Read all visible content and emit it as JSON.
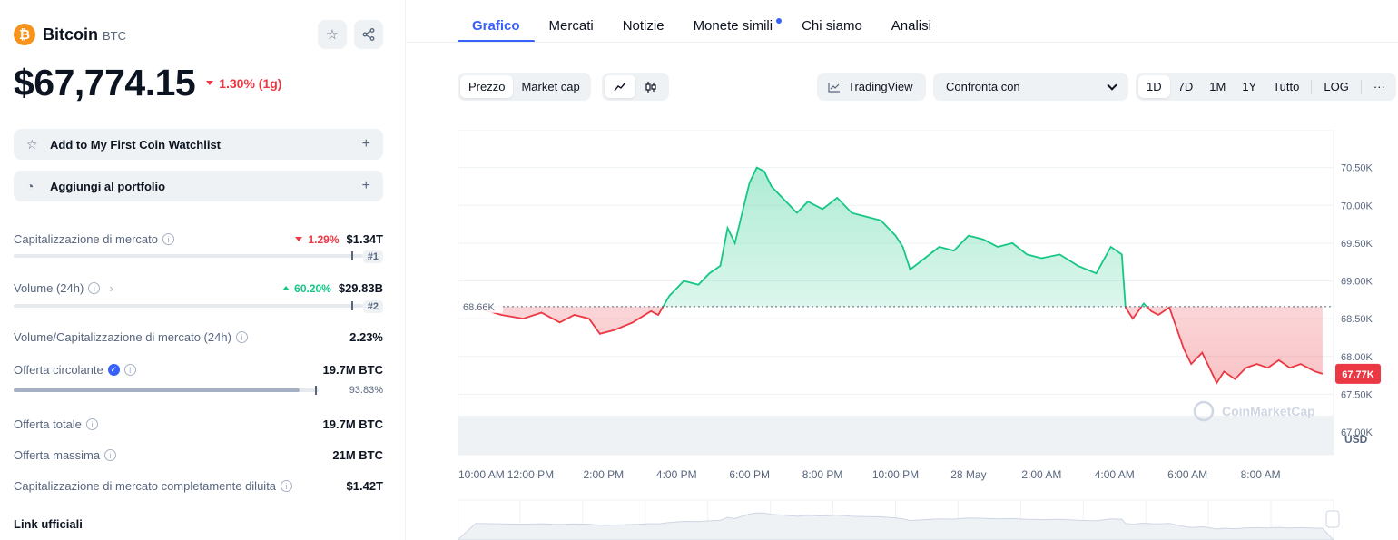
{
  "coin": {
    "logo_glyph": "₿",
    "name": "Bitcoin",
    "symbol": "BTC",
    "price": "$67,774.15",
    "change": "1.30% (1g)",
    "change_color": "#ea3943"
  },
  "actions": {
    "watchlist_label": "Add to My First Coin Watchlist",
    "portfolio_label": "Aggiungi al portfolio",
    "plus": "+"
  },
  "stats": {
    "market_cap": {
      "label": "Capitalizzazione di mercato",
      "change": "1.29%",
      "value": "$1.34T",
      "rank": "#1"
    },
    "volume": {
      "label": "Volume (24h)",
      "change": "60.20%",
      "value": "$29.83B",
      "rank": "#2"
    },
    "vol_mcap": {
      "label": "Volume/Capitalizzazione di mercato (24h)",
      "value": "2.23%"
    },
    "circulating": {
      "label": "Offerta circolante",
      "value": "19.7M BTC",
      "percent": "93.83%",
      "fill": 0.9383
    },
    "total": {
      "label": "Offerta totale",
      "value": "19.7M BTC"
    },
    "max": {
      "label": "Offerta massima",
      "value": "21M BTC"
    },
    "fdv": {
      "label": "Capitalizzazione di mercato completamente diluita",
      "value": "$1.42T"
    }
  },
  "links_title": "Link ufficiali",
  "tabs": [
    "Grafico",
    "Mercati",
    "Notizie",
    "Monete simili",
    "Chi siamo",
    "Analisi"
  ],
  "toolbar": {
    "price_label": "Prezzo",
    "mcap_label": "Market cap",
    "tradingview_label": "TradingView",
    "compare_label": "Confronta con",
    "ranges": [
      "1D",
      "7D",
      "1M",
      "1Y",
      "Tutto"
    ],
    "log_label": "LOG",
    "more_label": "···"
  },
  "chart_data": {
    "type": "line",
    "y_ticks": [
      "70.50K",
      "70.00K",
      "69.50K",
      "69.00K",
      "68.50K",
      "68.00K",
      "67.50K",
      "67.00K"
    ],
    "y_tick_values": [
      70500,
      70000,
      69500,
      69000,
      68500,
      68000,
      67500,
      67000
    ],
    "ylim": [
      66700,
      71000
    ],
    "currency_label": "USD",
    "baseline_label": "68.66K",
    "baseline": 68660,
    "current_label": "67.77K",
    "current": 67770,
    "x_labels": [
      "10:00 AM",
      "12:00 PM",
      "2:00 PM",
      "4:00 PM",
      "6:00 PM",
      "8:00 PM",
      "10:00 PM",
      "28 May",
      "2:00 AM",
      "4:00 AM",
      "6:00 AM",
      "8:00 AM"
    ],
    "x_label_pos": [
      0,
      2,
      4,
      6,
      8,
      10,
      12,
      14,
      16,
      18,
      20,
      22
    ],
    "x_range": [
      0,
      24
    ],
    "x": [
      0.5,
      1.2,
      1.8,
      2.3,
      2.8,
      3.2,
      3.6,
      3.9,
      4.3,
      4.8,
      5.3,
      5.5,
      5.8,
      6.2,
      6.6,
      6.9,
      7.2,
      7.4,
      7.6,
      7.8,
      8.0,
      8.2,
      8.4,
      8.6,
      8.8,
      9.0,
      9.3,
      9.6,
      10.0,
      10.4,
      10.8,
      11.2,
      11.6,
      12.0,
      12.2,
      12.4,
      12.8,
      13.2,
      13.6,
      14.0,
      14.4,
      14.8,
      15.2,
      15.6,
      16.0,
      16.5,
      17.0,
      17.5,
      17.9,
      18.2,
      18.3,
      18.5,
      18.8,
      19.0,
      19.2,
      19.5,
      19.9,
      20.1,
      20.4,
      20.8,
      21.0,
      21.3,
      21.6,
      21.9,
      22.2,
      22.5,
      22.8,
      23.1,
      23.5,
      23.7
    ],
    "values": [
      68650,
      68550,
      68500,
      68580,
      68450,
      68550,
      68500,
      68300,
      68350,
      68450,
      68600,
      68550,
      68800,
      69000,
      68950,
      69100,
      69200,
      69700,
      69500,
      69900,
      70300,
      70500,
      70450,
      70250,
      70150,
      70050,
      69900,
      70050,
      69950,
      70100,
      69900,
      69850,
      69800,
      69600,
      69450,
      69150,
      69300,
      69450,
      69400,
      69600,
      69550,
      69450,
      69500,
      69350,
      69300,
      69350,
      69200,
      69100,
      69450,
      69350,
      68650,
      68500,
      68700,
      68600,
      68550,
      68650,
      68100,
      67900,
      68050,
      67650,
      67800,
      67700,
      67850,
      67900,
      67850,
      67950,
      67850,
      67900,
      67800,
      67770
    ],
    "up_color": "#16c784",
    "down_color": "#ea3943",
    "watermark": "CoinMarketCap"
  }
}
